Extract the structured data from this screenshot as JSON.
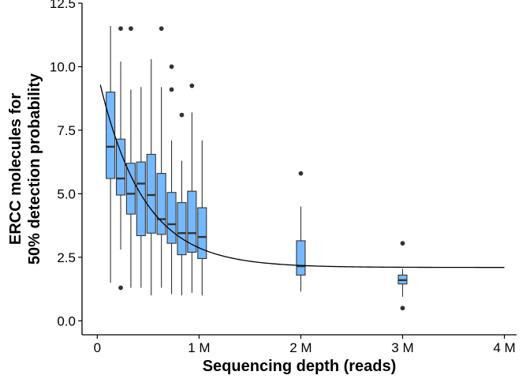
{
  "chart_data": {
    "type": "boxplot",
    "title": "",
    "xlabel": "Sequencing depth (reads)",
    "ylabel_lines": [
      "ERCC molecules for",
      "50% detection probability"
    ],
    "xlim": [
      -150000,
      4120000
    ],
    "ylim": [
      -0.55,
      12.5
    ],
    "grid": false,
    "x_ticks": [
      {
        "value": 0,
        "label": "0"
      },
      {
        "value": 1000000,
        "label": "1 M"
      },
      {
        "value": 2000000,
        "label": "2 M"
      },
      {
        "value": 3000000,
        "label": "3 M"
      },
      {
        "value": 4000000,
        "label": "4 M"
      }
    ],
    "y_ticks": [
      {
        "value": 0,
        "label": "0.0"
      },
      {
        "value": 2.5,
        "label": "2.5"
      },
      {
        "value": 5,
        "label": "5.0"
      },
      {
        "value": 7.5,
        "label": "7.5"
      },
      {
        "value": 10,
        "label": "10.0"
      },
      {
        "value": 12.5,
        "label": "12.5"
      }
    ],
    "box_color": "#74b9ff",
    "box_edge_color": "#333333",
    "point_color": "#333333",
    "boxes": [
      {
        "x": 130000,
        "whisker_low": 1.5,
        "q1": 5.6,
        "median": 6.85,
        "q3": 9.0,
        "whisker_high": 11.6,
        "outliers": []
      },
      {
        "x": 230000,
        "whisker_low": 2.8,
        "q1": 4.95,
        "median": 5.6,
        "q3": 7.15,
        "whisker_high": 10.2,
        "outliers": [
          11.5,
          1.3
        ]
      },
      {
        "x": 330000,
        "whisker_low": 1.3,
        "q1": 4.2,
        "median": 5.0,
        "q3": 6.2,
        "whisker_high": 9.1,
        "outliers": [
          11.5
        ]
      },
      {
        "x": 430000,
        "whisker_low": 1.3,
        "q1": 3.35,
        "median": 5.4,
        "q3": 6.25,
        "whisker_high": 9.2,
        "outliers": []
      },
      {
        "x": 530000,
        "whisker_low": 1.0,
        "q1": 3.45,
        "median": 4.95,
        "q3": 6.55,
        "whisker_high": 10.3,
        "outliers": []
      },
      {
        "x": 630000,
        "whisker_low": 1.3,
        "q1": 3.4,
        "median": 4.0,
        "q3": 5.8,
        "whisker_high": 9.2,
        "outliers": [
          11.5
        ]
      },
      {
        "x": 730000,
        "whisker_low": 1.05,
        "q1": 3.05,
        "median": 3.8,
        "q3": 5.05,
        "whisker_high": 7.1,
        "outliers": [
          10.0,
          9.1
        ]
      },
      {
        "x": 830000,
        "whisker_low": 1.0,
        "q1": 2.6,
        "median": 3.45,
        "q3": 4.65,
        "whisker_high": 6.3,
        "outliers": [
          8.1
        ]
      },
      {
        "x": 930000,
        "whisker_low": 1.1,
        "q1": 2.7,
        "median": 3.45,
        "q3": 5.1,
        "whisker_high": 8.2,
        "outliers": [
          9.25
        ]
      },
      {
        "x": 1030000,
        "whisker_low": 1.0,
        "q1": 2.45,
        "median": 3.3,
        "q3": 4.45,
        "whisker_high": 7.1,
        "outliers": []
      },
      {
        "x": 2000000,
        "whisker_low": 1.15,
        "q1": 1.8,
        "median": 2.15,
        "q3": 3.15,
        "whisker_high": 4.5,
        "outliers": [
          5.8
        ]
      },
      {
        "x": 3000000,
        "whisker_low": 0.95,
        "q1": 1.45,
        "median": 1.6,
        "q3": 1.8,
        "whisker_high": 2.05,
        "outliers": [
          3.05,
          0.5
        ]
      }
    ],
    "fit_curve": {
      "model": "exponential_decay",
      "asymptote": 2.1,
      "amplitude": 7.7,
      "decay_per_read": 2.3e-06,
      "x_start": 30000,
      "x_end": 4000000
    }
  }
}
